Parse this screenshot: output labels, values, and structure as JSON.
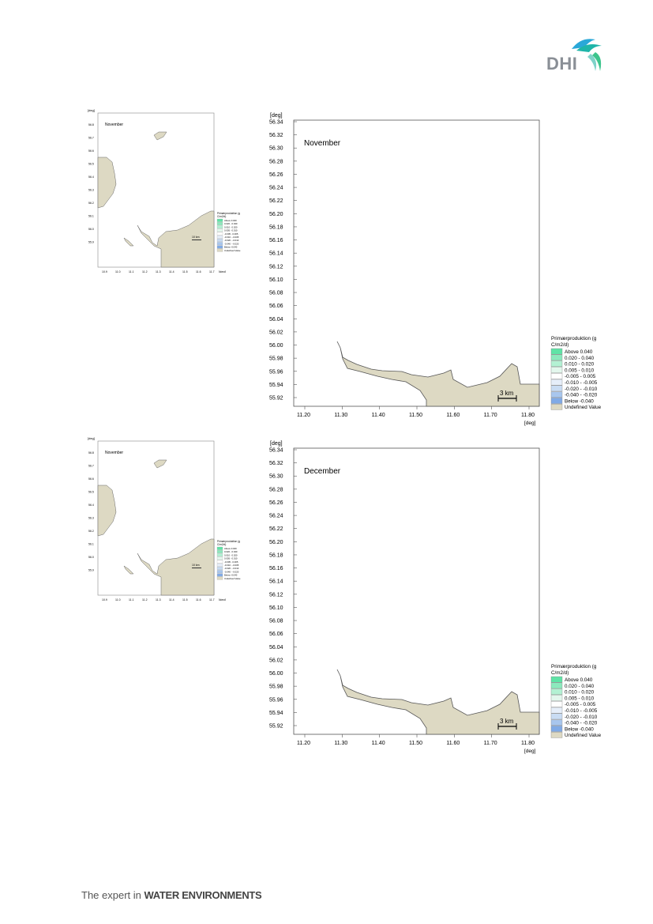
{
  "brand": {
    "logo_text": "DHI",
    "tagline_prefix": "The expert in ",
    "tagline_emphasis": "WATER ENVIRONMENTS"
  },
  "colors": {
    "land": "#ddd9c3",
    "ramp": [
      "#5fe3a6",
      "#8ce9bd",
      "#b3f1d3",
      "#e3f7ed",
      "#ffffff",
      "#e6eef9",
      "#c9dcf3",
      "#a8c6ee",
      "#80aae6",
      "#5e8fdc"
    ]
  },
  "units": {
    "deg": "[deg]"
  },
  "y_ticks": [
    "56.34",
    "56.32",
    "56.30",
    "56.28",
    "56.26",
    "56.24",
    "56.22",
    "56.20",
    "56.18",
    "56.16",
    "56.14",
    "56.12",
    "56.10",
    "56.08",
    "56.06",
    "56.04",
    "56.02",
    "56.00",
    "55.98",
    "55.96",
    "55.94",
    "55.92"
  ],
  "x_ticks": [
    "11.20",
    "11.30",
    "11.40",
    "11.50",
    "11.60",
    "11.70",
    "11.80"
  ],
  "scale_bar": "3 km",
  "legend": {
    "title_line1": "Primærproduktion (g",
    "title_line2": "C/m2/d)",
    "items": [
      {
        "label": "Above   0.040",
        "color": "#5fe3a6"
      },
      {
        "label": " 0.020 -  0.040",
        "color": "#8ce9bd"
      },
      {
        "label": " 0.010 -  0.020",
        "color": "#b3f1d3"
      },
      {
        "label": " 0.005 -  0.010",
        "color": "#e3f7ed"
      },
      {
        "label": "-0.005 -  0.005",
        "color": "#ffffff"
      },
      {
        "label": "-0.010 - -0.005",
        "color": "#e6eef9"
      },
      {
        "label": "-0.020 - -0.010",
        "color": "#c9dcf3"
      },
      {
        "label": "-0.040 - -0.020",
        "color": "#a8c6ee"
      },
      {
        "label": "Below   -0.040",
        "color": "#80aae6"
      },
      {
        "label": "Undefined Value",
        "color": "#ddd9c3"
      }
    ]
  },
  "overview": {
    "title": "November",
    "y_ticks": [
      "56.8",
      "56.7",
      "56.6",
      "56.5",
      "56.4",
      "56.3",
      "56.2",
      "56.1",
      "56.0",
      "55.9"
    ],
    "x_ticks": [
      "10.9",
      "11.0",
      "11.1",
      "11.2",
      "11.3",
      "11.4",
      "11.5",
      "11.6",
      "11.7"
    ],
    "scale_bar": "10 km"
  },
  "panels": [
    {
      "month": "November"
    },
    {
      "month": "December"
    }
  ]
}
